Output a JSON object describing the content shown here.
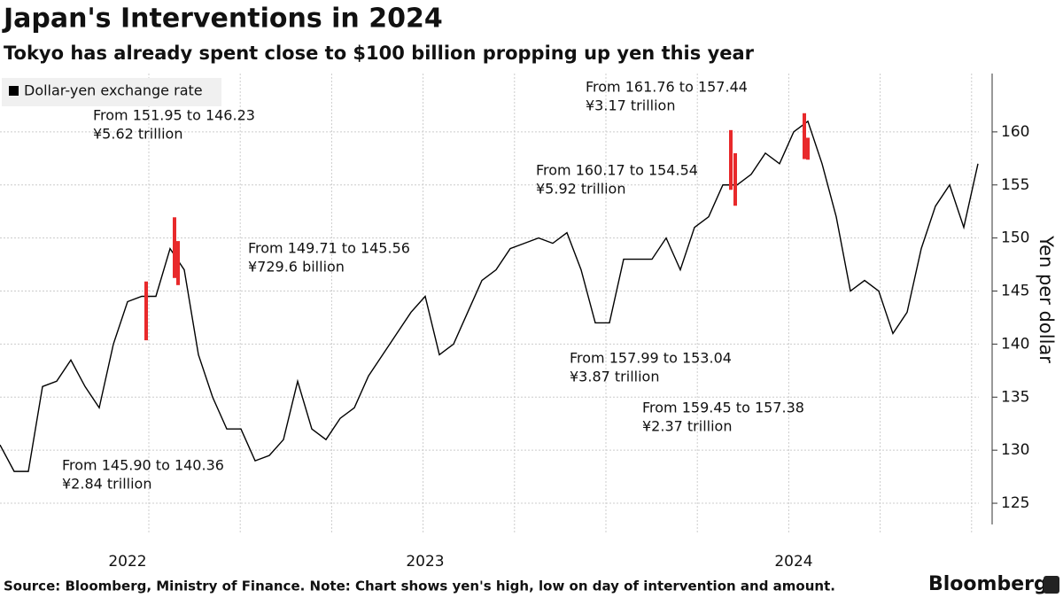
{
  "chart_data": {
    "type": "line",
    "title": "Japan's Interventions in 2024",
    "subtitle": "Tokyo has already spent close to $100 billion propping up yen this year",
    "y_label": "Yen per dollar",
    "source": "Source: Bloomberg, Ministry of Finance. Note: Chart shows yen's high, low on day of intervention and amount.",
    "brand": "Bloomberg",
    "categories": [
      null,
      null,
      null,
      null,
      null,
      null,
      null,
      null,
      null,
      "2022",
      null,
      null,
      null,
      null,
      null,
      null,
      null,
      null,
      null,
      null,
      null,
      null,
      null,
      null,
      null,
      null,
      null,
      null,
      null,
      null,
      "2023",
      null,
      null,
      null,
      null,
      null,
      null,
      null,
      null,
      null,
      null,
      null,
      null,
      null,
      null,
      null,
      null,
      null,
      null,
      null,
      null,
      null,
      null,
      null,
      null,
      null,
      "2024",
      null,
      null,
      null,
      null,
      null,
      null,
      null,
      null,
      null,
      null,
      null,
      null,
      null
    ],
    "series": [
      {
        "name": "Dollar-yen exchange rate",
        "color": "#000000",
        "values": [
          130.5,
          128,
          128,
          136,
          136.5,
          138.5,
          136,
          134,
          140,
          144,
          144.5,
          144.5,
          149,
          147,
          139,
          135,
          132,
          132,
          129,
          129.5,
          131,
          136.5,
          132,
          131,
          133,
          134,
          137,
          139,
          141,
          143,
          144.5,
          139,
          140,
          143,
          146,
          147,
          149,
          149.5,
          150,
          149.5,
          150.5,
          147,
          142,
          142,
          148,
          148,
          148,
          150,
          147,
          151,
          152,
          155,
          155,
          156,
          158,
          157,
          160,
          161,
          157,
          152,
          145,
          146,
          145,
          141,
          143,
          149,
          153,
          155,
          151,
          157
        ]
      }
    ],
    "interventions": [
      {
        "high": 145.9,
        "low": 140.36,
        "text": [
          "From 145.90 to 140.36",
          "¥2.84 trillion"
        ]
      },
      {
        "high": 151.95,
        "low": 146.23,
        "text": [
          "From 151.95 to 146.23",
          "¥5.62 trillion"
        ]
      },
      {
        "high": 149.71,
        "low": 145.56,
        "text": [
          "From 149.71 to 145.56",
          "¥729.6 billion"
        ]
      },
      {
        "high": 160.17,
        "low": 154.54,
        "text": [
          "From 160.17 to 154.54",
          "¥5.92 trillion"
        ]
      },
      {
        "high": 157.99,
        "low": 153.04,
        "text": [
          "From 157.99 to 153.04",
          "¥3.87 trillion"
        ]
      },
      {
        "high": 161.76,
        "low": 157.44,
        "text": [
          "From 161.76 to 157.44",
          "¥3.17 trillion"
        ]
      },
      {
        "high": 159.45,
        "low": 157.38,
        "text": [
          "From 159.45 to 157.38",
          "¥2.37 trillion"
        ]
      }
    ],
    "intervention_color": "#e8292b",
    "ylim": [
      123,
      165.5
    ],
    "yticks": [
      125,
      130,
      135,
      140,
      145,
      150,
      155,
      160
    ],
    "grid": true,
    "legend": "top-left"
  }
}
